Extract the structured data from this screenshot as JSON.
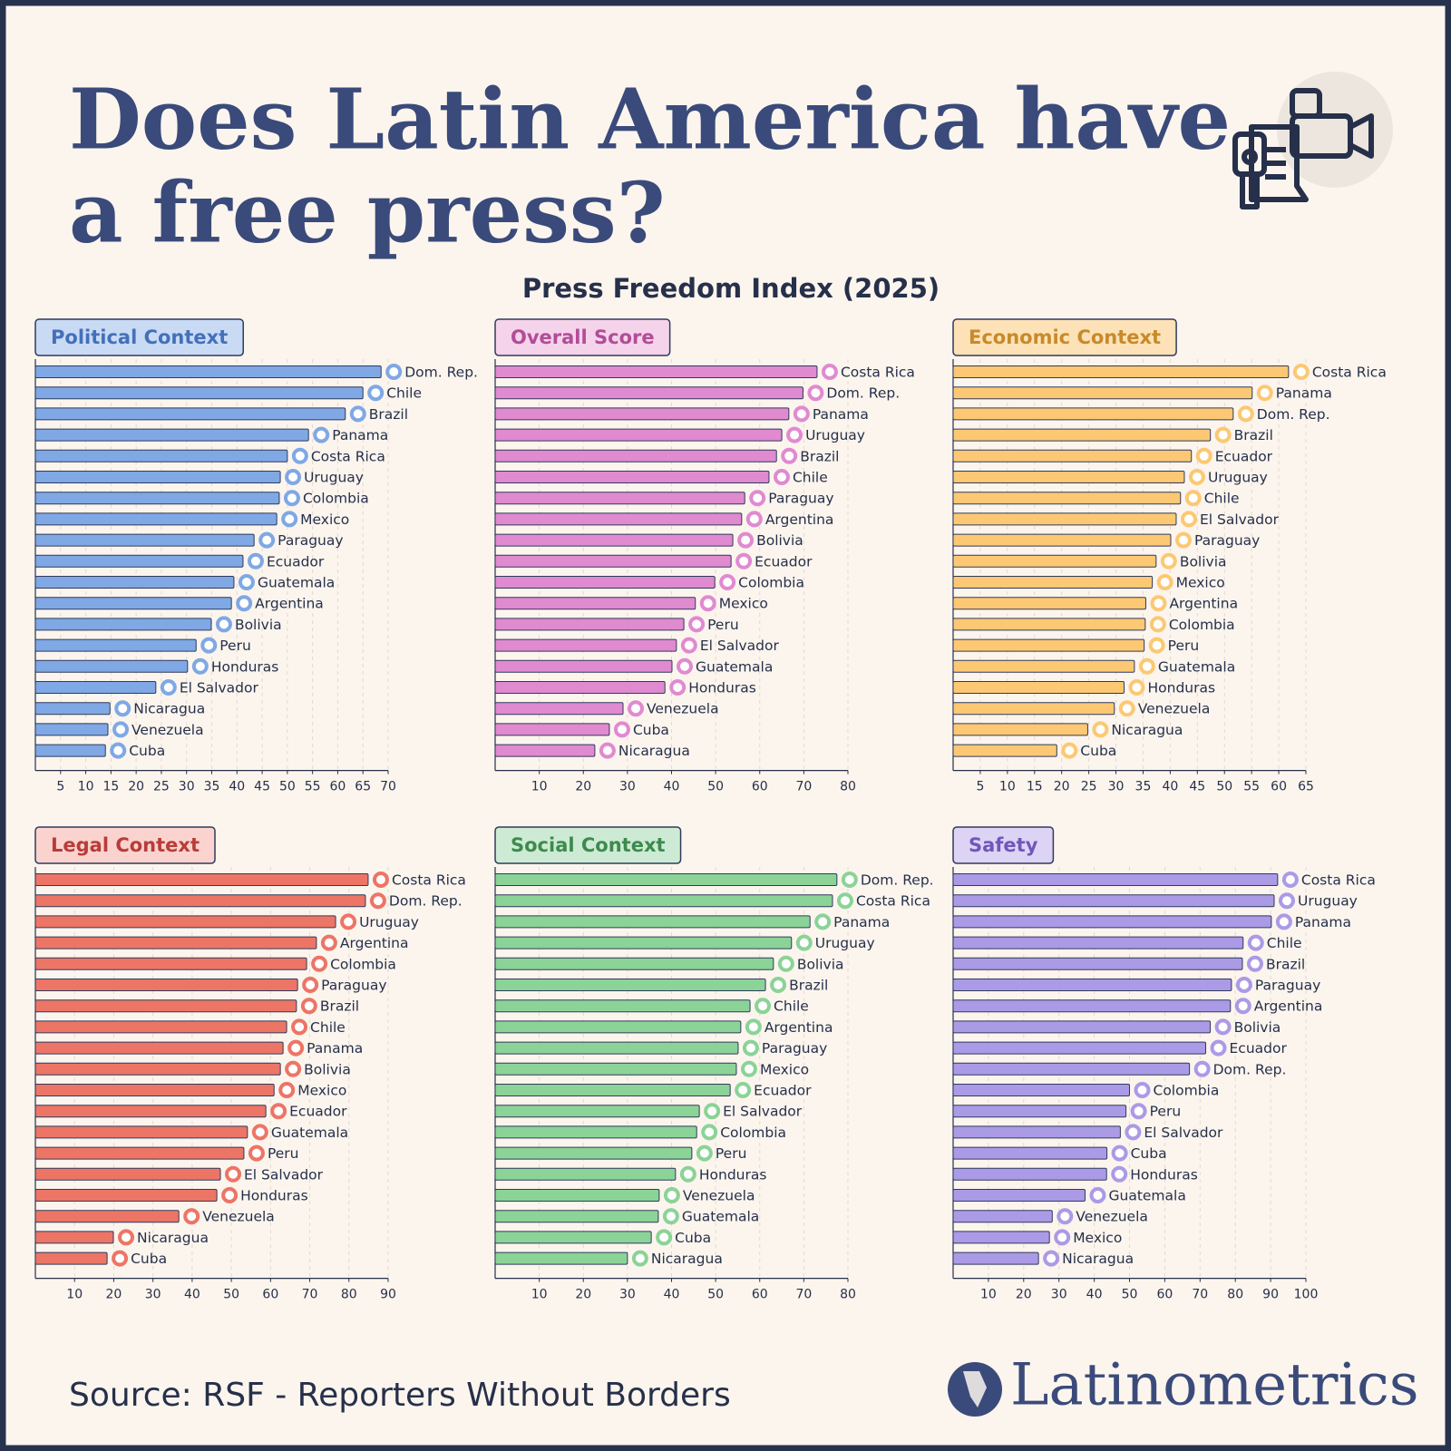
{
  "title": [
    "Does Latin America have",
    "a free press?"
  ],
  "subtitle": "Press Freedom Index (2025)",
  "source": "Source: RSF - Reporters Without Borders",
  "brand": "Latinometrics",
  "chart_data": [
    {
      "type": "bar",
      "orientation": "horizontal",
      "title": "Political Context",
      "color": "#7fa8e4",
      "categories": [
        "Dom. Rep.",
        "Chile",
        "Brazil",
        "Panama",
        "Costa Rica",
        "Uruguay",
        "Colombia",
        "Mexico",
        "Paraguay",
        "Ecuador",
        "Guatemala",
        "Argentina",
        "Bolivia",
        "Peru",
        "Honduras",
        "El Salvador",
        "Nicaragua",
        "Venezuela",
        "Cuba"
      ],
      "values": [
        68.6,
        65.0,
        61.5,
        54.2,
        50.0,
        48.6,
        48.4,
        47.9,
        43.4,
        41.2,
        39.4,
        38.9,
        34.9,
        31.9,
        30.2,
        23.9,
        14.8,
        14.4,
        13.9
      ],
      "xlim": [
        0,
        70
      ],
      "xticks": [
        5,
        10,
        15,
        20,
        25,
        30,
        35,
        40,
        45,
        50,
        55,
        60,
        65,
        70
      ]
    },
    {
      "type": "bar",
      "orientation": "horizontal",
      "title": "Overall Score",
      "color": "#e08ad0",
      "categories": [
        "Costa Rica",
        "Dom. Rep.",
        "Panama",
        "Uruguay",
        "Brazil",
        "Chile",
        "Paraguay",
        "Argentina",
        "Bolivia",
        "Ecuador",
        "Colombia",
        "Mexico",
        "Peru",
        "El Salvador",
        "Guatemala",
        "Honduras",
        "Venezuela",
        "Cuba",
        "Nicaragua"
      ],
      "values": [
        73.0,
        69.8,
        66.6,
        65.0,
        63.8,
        62.1,
        56.6,
        55.9,
        53.9,
        53.5,
        49.8,
        45.4,
        42.8,
        41.1,
        40.1,
        38.5,
        29.0,
        25.9,
        22.6
      ],
      "xlim": [
        0,
        80
      ],
      "xticks": [
        10,
        20,
        30,
        40,
        50,
        60,
        70,
        80
      ]
    },
    {
      "type": "bar",
      "orientation": "horizontal",
      "title": "Economic Context",
      "color": "#fcc873",
      "categories": [
        "Costa Rica",
        "Panama",
        "Dom. Rep.",
        "Brazil",
        "Ecuador",
        "Uruguay",
        "Chile",
        "El Salvador",
        "Paraguay",
        "Bolivia",
        "Mexico",
        "Argentina",
        "Colombia",
        "Peru",
        "Guatemala",
        "Honduras",
        "Venezuela",
        "Nicaragua",
        "Cuba"
      ],
      "values": [
        61.8,
        55.1,
        51.6,
        47.4,
        43.9,
        42.6,
        41.9,
        41.1,
        40.1,
        37.4,
        36.7,
        35.5,
        35.4,
        35.2,
        33.4,
        31.5,
        29.7,
        24.8,
        19.1
      ],
      "xlim": [
        0,
        65
      ],
      "xticks": [
        5,
        10,
        15,
        20,
        25,
        30,
        35,
        40,
        45,
        50,
        55,
        60,
        65
      ]
    },
    {
      "type": "bar",
      "orientation": "horizontal",
      "title": "Legal Context",
      "color": "#ed7566",
      "categories": [
        "Costa Rica",
        "Dom. Rep.",
        "Uruguay",
        "Argentina",
        "Colombia",
        "Paraguay",
        "Brazil",
        "Chile",
        "Panama",
        "Bolivia",
        "Mexico",
        "Ecuador",
        "Guatemala",
        "Peru",
        "El Salvador",
        "Honduras",
        "Venezuela",
        "Nicaragua",
        "Cuba"
      ],
      "values": [
        84.9,
        84.2,
        76.6,
        71.7,
        69.2,
        66.9,
        66.6,
        64.1,
        63.2,
        62.5,
        60.9,
        58.8,
        54.1,
        53.2,
        47.2,
        46.3,
        36.6,
        19.9,
        18.3
      ],
      "xlim": [
        0,
        90
      ],
      "xticks": [
        10,
        20,
        30,
        40,
        50,
        60,
        70,
        80,
        90
      ]
    },
    {
      "type": "bar",
      "orientation": "horizontal",
      "title": "Social Context",
      "color": "#8bd397",
      "categories": [
        "Dom. Rep.",
        "Costa Rica",
        "Panama",
        "Uruguay",
        "Bolivia",
        "Brazil",
        "Chile",
        "Argentina",
        "Paraguay",
        "Mexico",
        "Ecuador",
        "El Salvador",
        "Colombia",
        "Peru",
        "Honduras",
        "Venezuela",
        "Guatemala",
        "Cuba",
        "Nicaragua"
      ],
      "values": [
        77.5,
        76.5,
        71.4,
        67.2,
        63.1,
        61.3,
        57.8,
        55.7,
        55.1,
        54.7,
        53.3,
        46.3,
        45.7,
        44.6,
        40.9,
        37.2,
        37.0,
        35.4,
        30.0
      ],
      "xlim": [
        0,
        80
      ],
      "xticks": [
        10,
        20,
        30,
        40,
        50,
        60,
        70,
        80
      ]
    },
    {
      "type": "bar",
      "orientation": "horizontal",
      "title": "Safety",
      "color": "#ab9ae6",
      "categories": [
        "Costa Rica",
        "Uruguay",
        "Panama",
        "Chile",
        "Brazil",
        "Paraguay",
        "Argentina",
        "Bolivia",
        "Ecuador",
        "Dom. Rep.",
        "Colombia",
        "Peru",
        "El Salvador",
        "Cuba",
        "Honduras",
        "Guatemala",
        "Venezuela",
        "Mexico",
        "Nicaragua"
      ],
      "values": [
        92.0,
        91.0,
        90.2,
        82.2,
        82.0,
        78.9,
        78.6,
        72.9,
        71.6,
        67.0,
        50.0,
        49.0,
        47.4,
        43.6,
        43.5,
        37.4,
        28.1,
        27.3,
        24.2
      ],
      "xlim": [
        0,
        100
      ],
      "xticks": [
        10,
        20,
        30,
        40,
        50,
        60,
        70,
        80,
        90,
        100
      ]
    }
  ]
}
